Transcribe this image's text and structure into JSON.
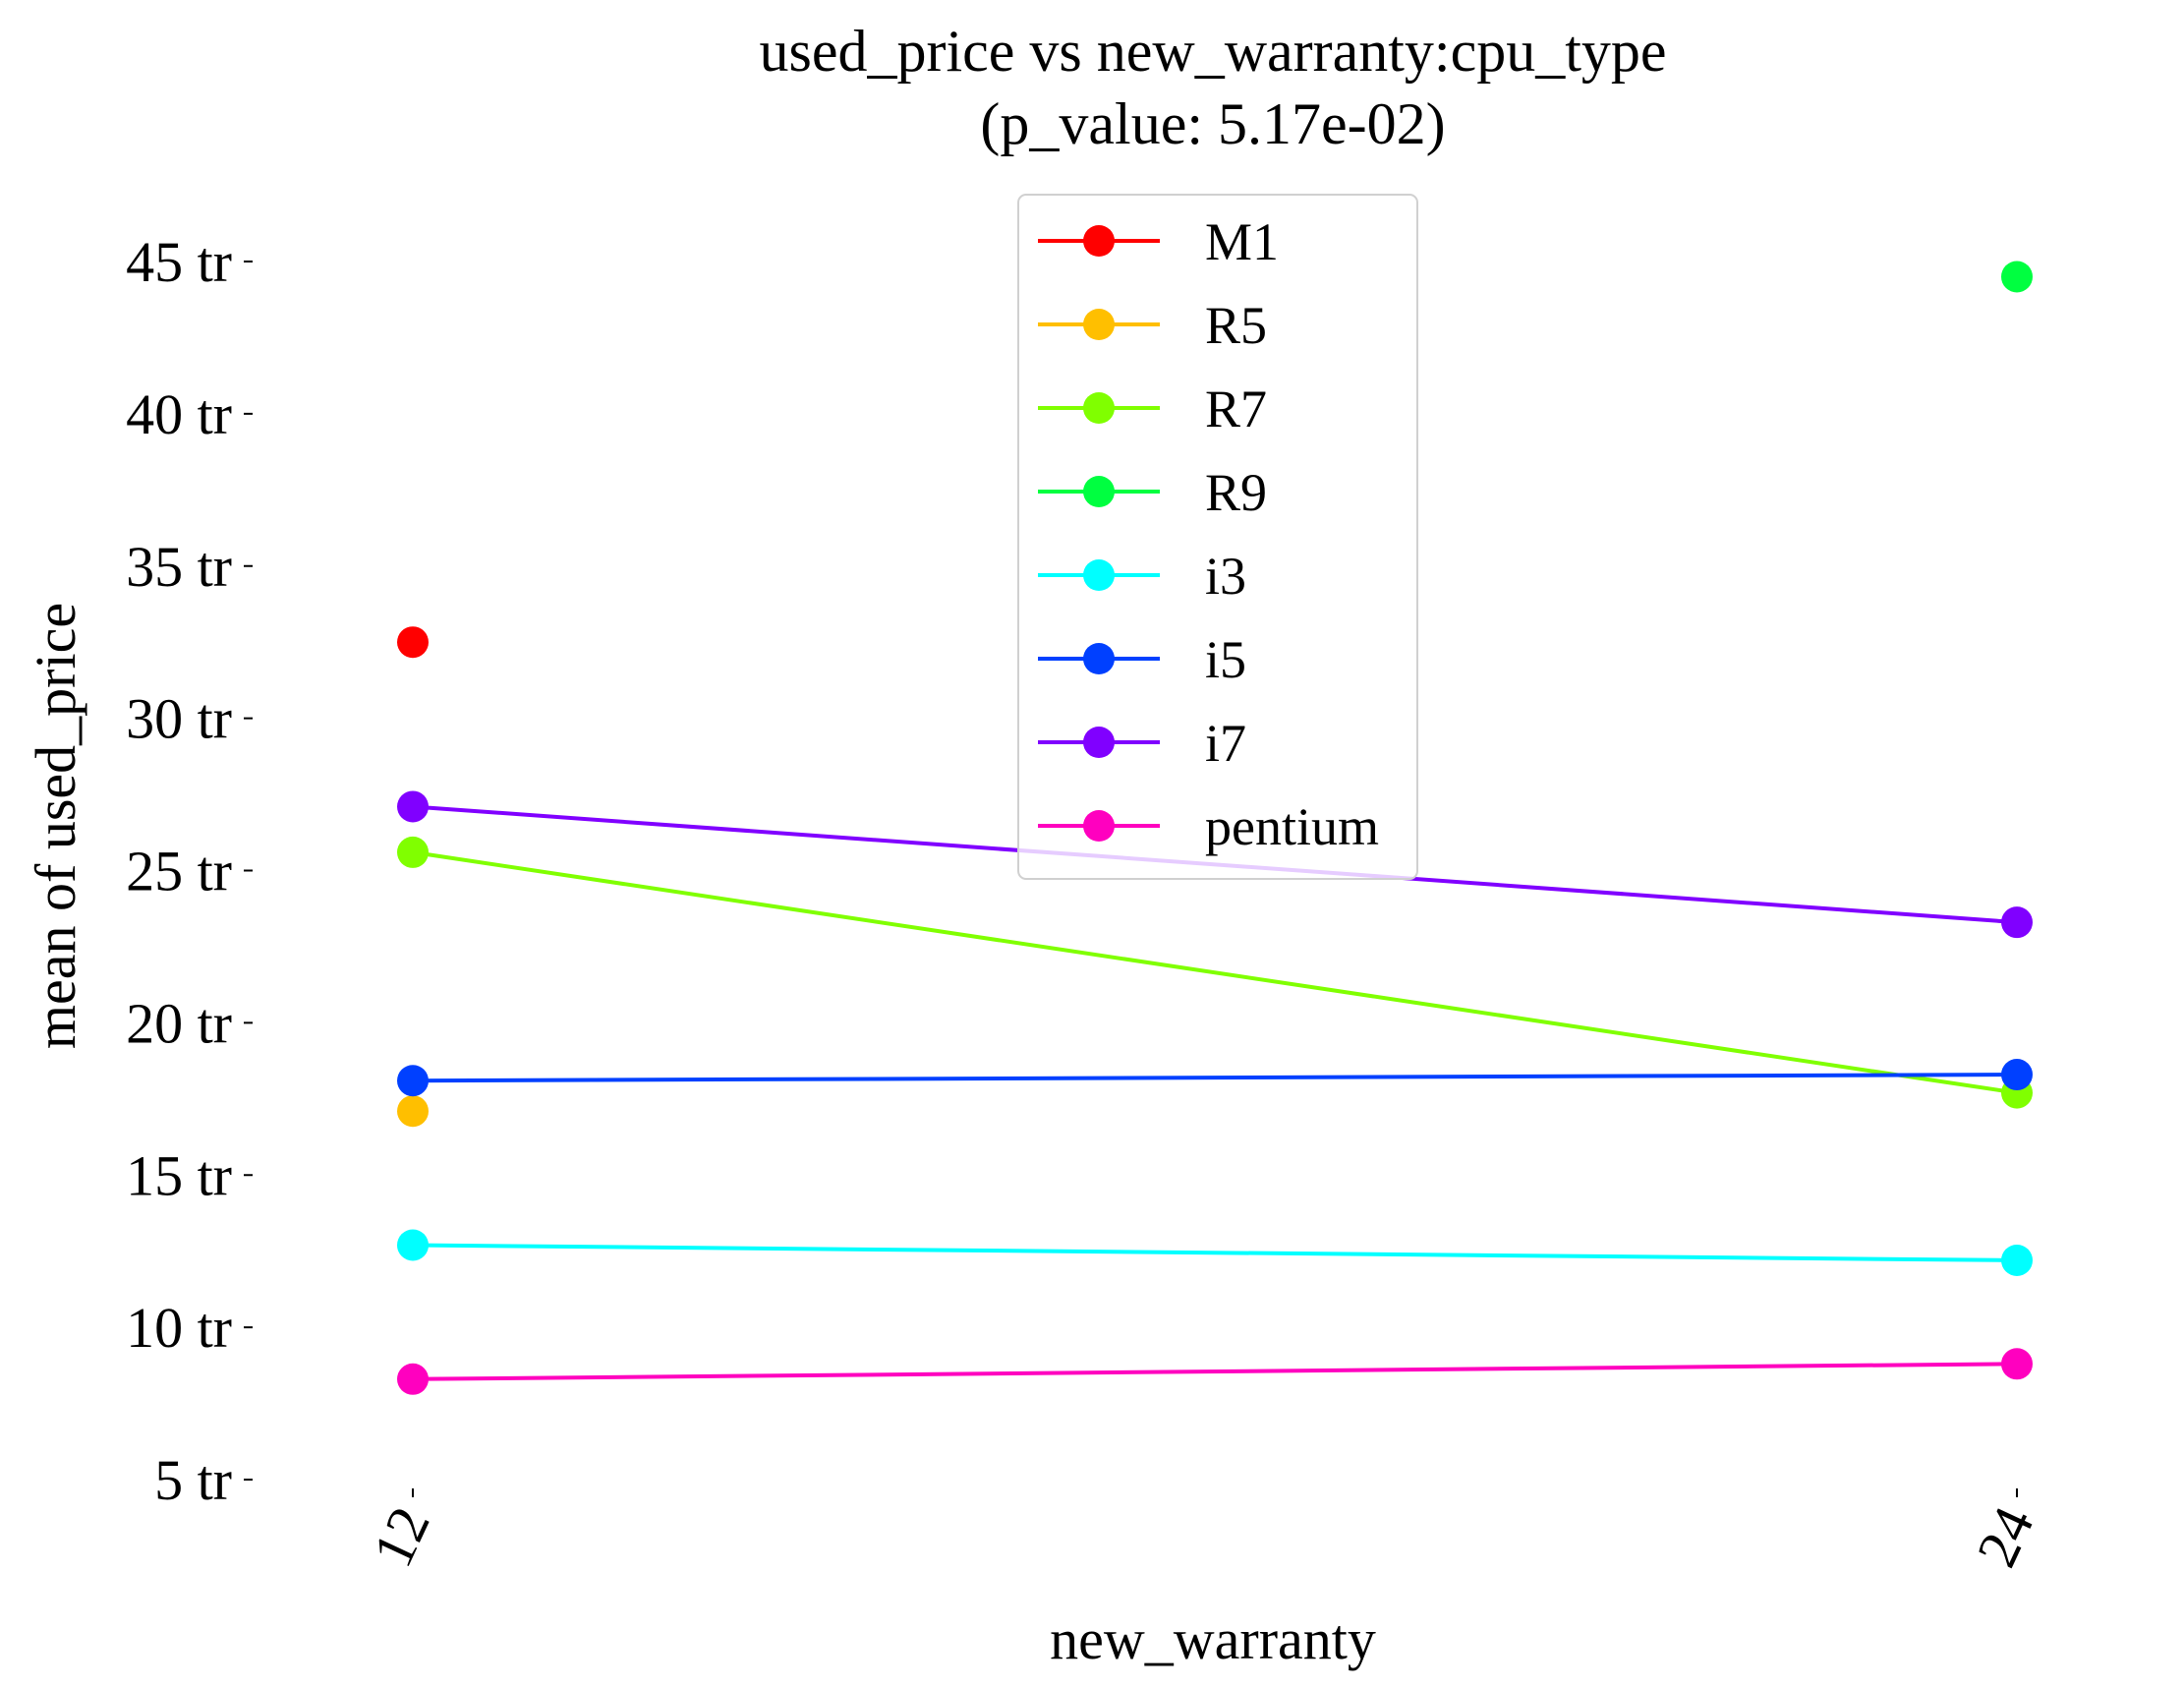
{
  "chart_data": {
    "type": "line",
    "title": "used_price vs new_warranty:cpu_type",
    "subtitle": "(p_value: 5.17e-02)",
    "xlabel": "new_warranty",
    "ylabel": "mean of used_price",
    "categories": [
      "12",
      "24"
    ],
    "y_ticks": [
      {
        "value": 5,
        "label": "5 tr"
      },
      {
        "value": 10,
        "label": "10 tr"
      },
      {
        "value": 15,
        "label": "15 tr"
      },
      {
        "value": 20,
        "label": "20 tr"
      },
      {
        "value": 25,
        "label": "25 tr"
      },
      {
        "value": 30,
        "label": "30 tr"
      },
      {
        "value": 35,
        "label": "35 tr"
      },
      {
        "value": 40,
        "label": "40 tr"
      },
      {
        "value": 45,
        "label": "45 tr"
      }
    ],
    "ylim": [
      4,
      46
    ],
    "grid": false,
    "legend_position": "top-center",
    "series": [
      {
        "name": "M1",
        "color": "#ff0000",
        "values": [
          32.5,
          null
        ]
      },
      {
        "name": "R5",
        "color": "#ffbf00",
        "values": [
          17.1,
          null
        ]
      },
      {
        "name": "R7",
        "color": "#80ff00",
        "values": [
          25.6,
          17.7
        ]
      },
      {
        "name": "R9",
        "color": "#00ff40",
        "values": [
          null,
          44.5
        ]
      },
      {
        "name": "i3",
        "color": "#00ffff",
        "values": [
          12.7,
          12.2
        ]
      },
      {
        "name": "i5",
        "color": "#0040ff",
        "values": [
          18.1,
          18.3
        ]
      },
      {
        "name": "i7",
        "color": "#8000ff",
        "values": [
          27.1,
          23.3
        ]
      },
      {
        "name": "pentium",
        "color": "#ff00bf",
        "values": [
          8.3,
          8.8
        ]
      }
    ]
  }
}
